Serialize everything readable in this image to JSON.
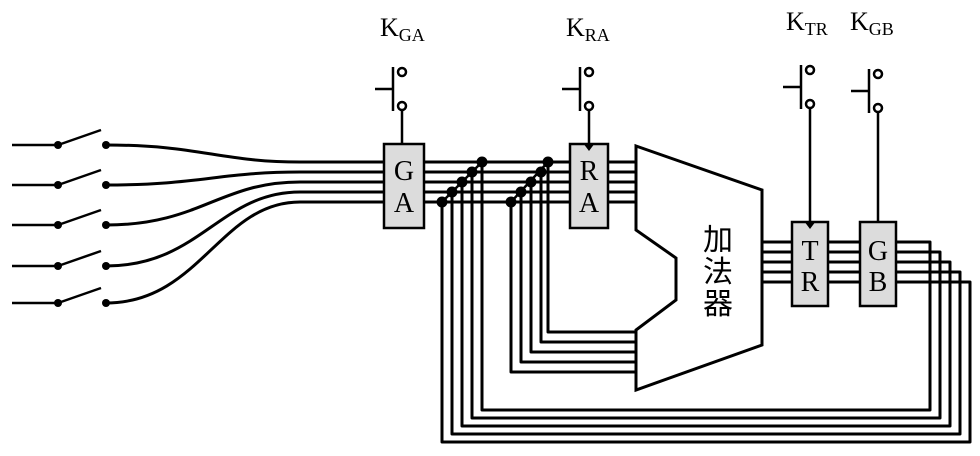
{
  "labels": {
    "kga_main": "K",
    "kga_sub": "GA",
    "kra_main": "K",
    "kra_sub": "RA",
    "ktr_main": "K",
    "ktr_sub": "TR",
    "kgb_main": "K",
    "kgb_sub": "GB",
    "ga_line1": "G",
    "ga_line2": "A",
    "ra_line1": "R",
    "ra_line2": "A",
    "tr_line1": "T",
    "tr_line2": "R",
    "gb_line1": "G",
    "gb_line2": "B",
    "adder_1": "加",
    "adder_2": "法",
    "adder_3": "器"
  },
  "colors": {
    "register_fill": "#dcdcdc",
    "line": "#000000"
  }
}
